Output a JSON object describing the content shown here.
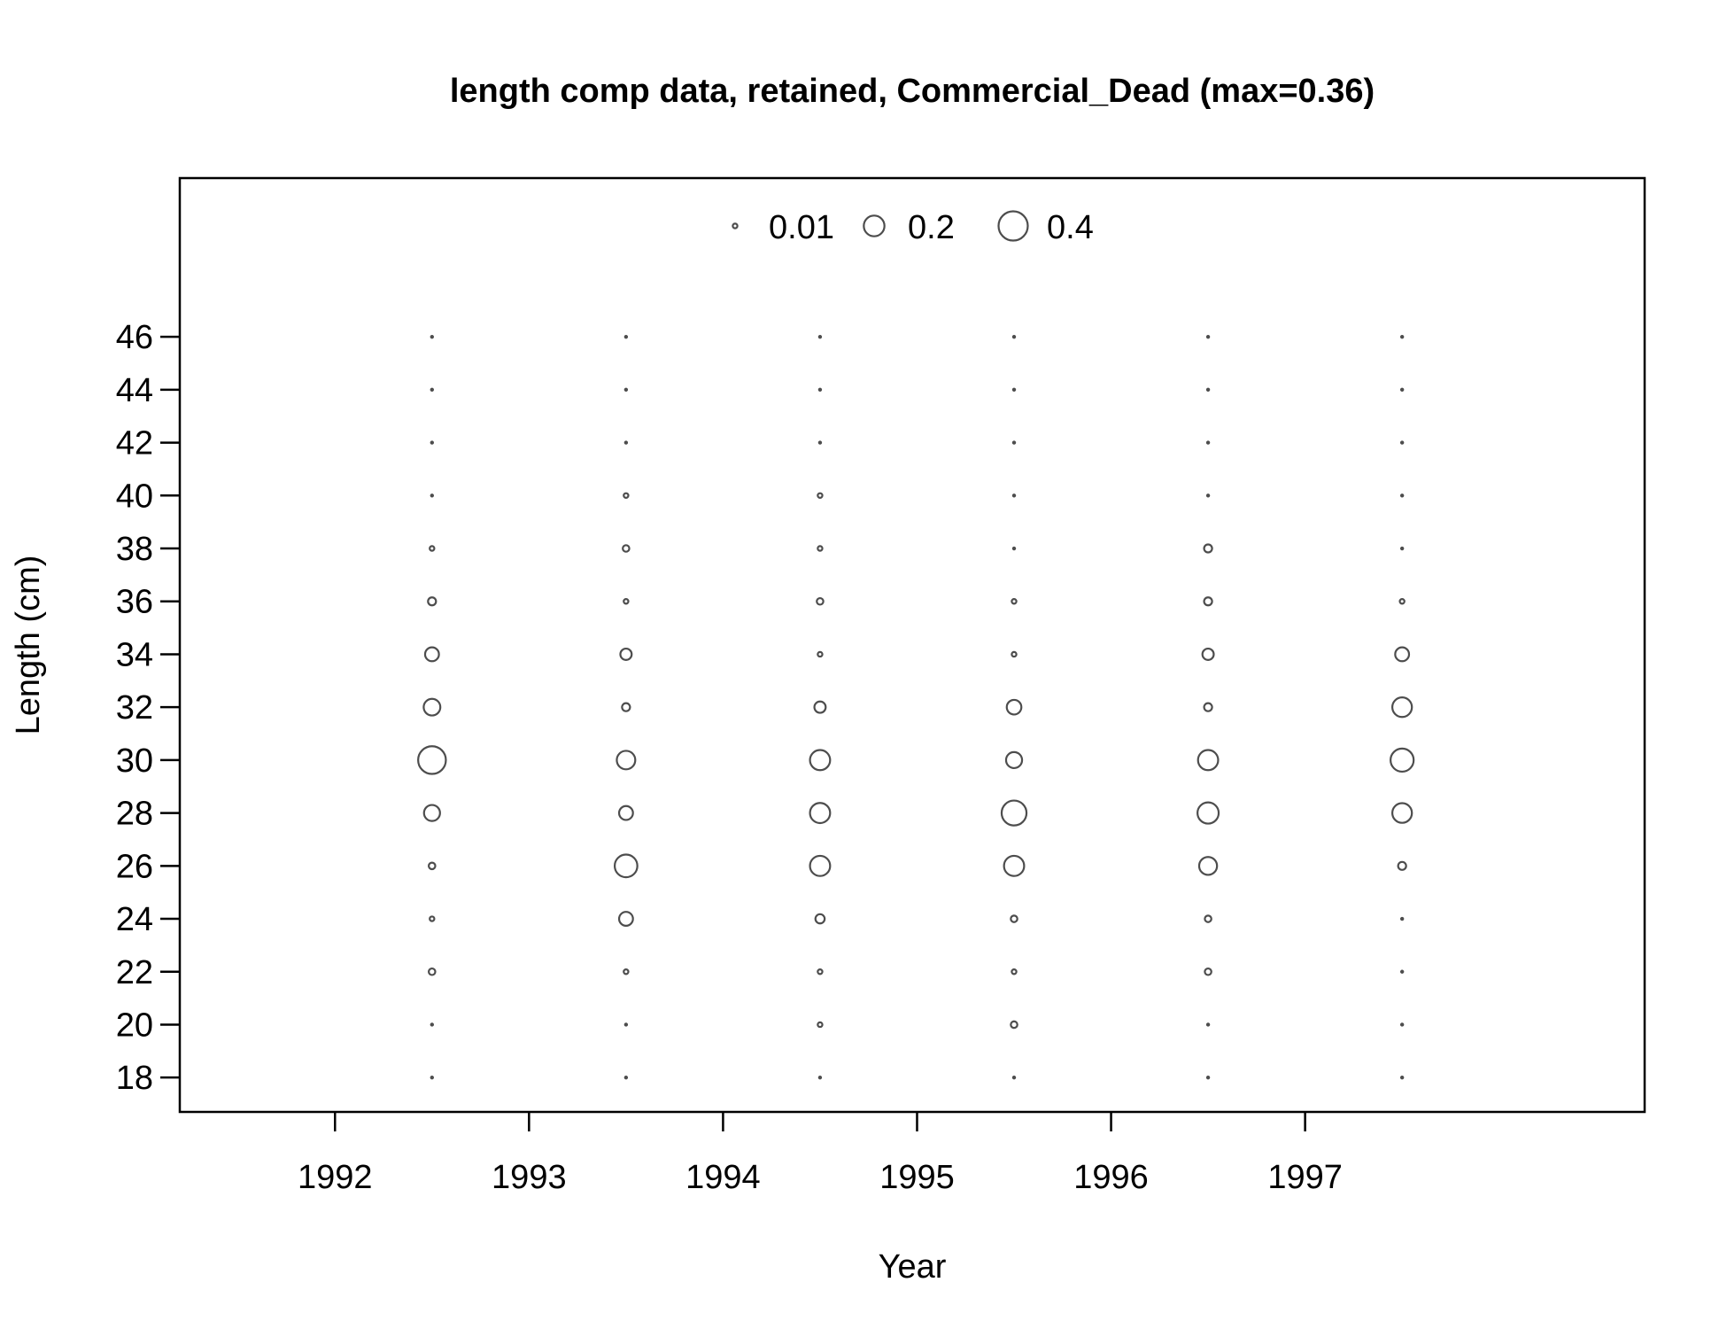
{
  "chart_data": {
    "type": "scatter",
    "subtype": "bubble",
    "title": "length comp data, retained, Commercial_Dead (max=0.36)",
    "xlabel": "Year",
    "ylabel": "Length (cm)",
    "xlim": [
      1991.2,
      1998.75
    ],
    "ylim": [
      16.7,
      52
    ],
    "x_ticks": [
      1992,
      1993,
      1994,
      1995,
      1996,
      1997
    ],
    "y_ticks": [
      18,
      20,
      22,
      24,
      26,
      28,
      30,
      32,
      34,
      36,
      38,
      40,
      42,
      44,
      46
    ],
    "legend": {
      "placement": "top",
      "entries": [
        {
          "label": "0.01",
          "value": 0.01
        },
        {
          "label": "0.2",
          "value": 0.2
        },
        {
          "label": "0.4",
          "value": 0.4
        }
      ]
    },
    "size_scale_reference": 0.4,
    "lengths": [
      18,
      20,
      22,
      24,
      26,
      28,
      30,
      32,
      34,
      36,
      38,
      40,
      42,
      44,
      46
    ],
    "series": [
      {
        "year": 1992.5,
        "proportions": [
          0.0,
          0.0,
          0.02,
          0.01,
          0.02,
          0.12,
          0.36,
          0.13,
          0.09,
          0.03,
          0.01,
          0.0,
          0.0,
          0.0,
          0.0
        ]
      },
      {
        "year": 1993.5,
        "proportions": [
          0.0,
          0.0,
          0.01,
          0.09,
          0.24,
          0.09,
          0.16,
          0.03,
          0.06,
          0.01,
          0.02,
          0.01,
          0.0,
          0.0,
          0.0
        ]
      },
      {
        "year": 1994.5,
        "proportions": [
          0.0,
          0.01,
          0.01,
          0.04,
          0.19,
          0.19,
          0.19,
          0.06,
          0.01,
          0.02,
          0.01,
          0.01,
          0.0,
          0.0,
          0.0
        ]
      },
      {
        "year": 1995.5,
        "proportions": [
          0.0,
          0.02,
          0.01,
          0.02,
          0.19,
          0.29,
          0.12,
          0.1,
          0.01,
          0.01,
          0.0,
          0.0,
          0.0,
          0.0,
          0.0
        ]
      },
      {
        "year": 1996.5,
        "proportions": [
          0.0,
          0.0,
          0.02,
          0.02,
          0.15,
          0.21,
          0.19,
          0.03,
          0.06,
          0.03,
          0.03,
          0.0,
          0.0,
          0.0,
          0.0
        ]
      },
      {
        "year": 1997.5,
        "proportions": [
          0.0,
          0.0,
          0.0,
          0.0,
          0.03,
          0.18,
          0.25,
          0.18,
          0.09,
          0.01,
          0.0,
          0.0,
          0.0,
          0.0,
          0.0
        ]
      }
    ]
  }
}
